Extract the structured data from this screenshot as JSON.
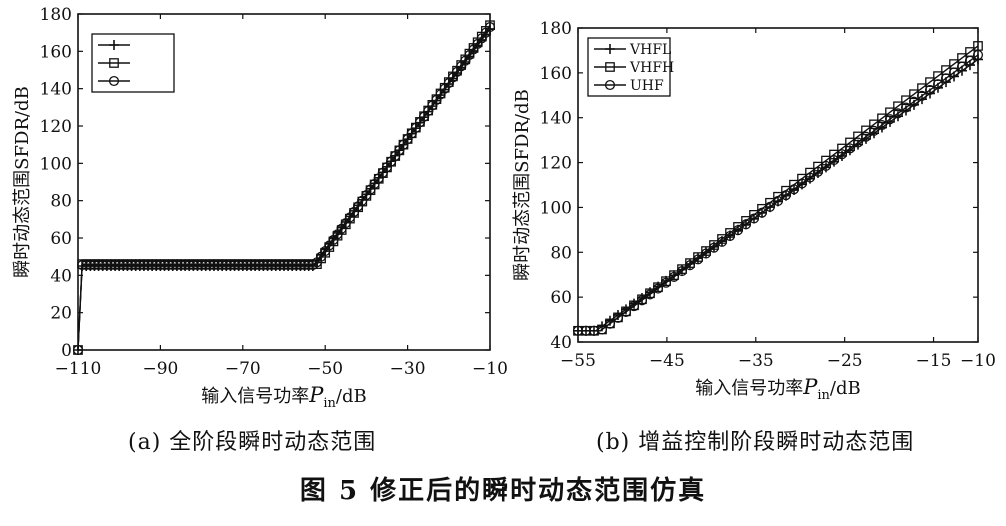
{
  "figure_caption": "图 5  修正后的瞬时动态范围仿真",
  "chart_data": [
    {
      "panel_label": "(a) 全阶段瞬时动态范围",
      "type": "line",
      "ylabel": "瞬时动态范围SFDR/dB",
      "xlabel_main": "输入信号功率",
      "xlabel_symbol": "P",
      "xlabel_sub": "in",
      "xlabel_unit": "/dB",
      "xlim": [
        -110,
        -10
      ],
      "ylim": [
        0,
        180
      ],
      "xticks": [
        -110,
        -90,
        -70,
        -50,
        -30,
        -10
      ],
      "xtick_labels": [
        "−110",
        "−90",
        "−70",
        "−50",
        "−30",
        "−10"
      ],
      "yticks": [
        0,
        20,
        40,
        60,
        80,
        100,
        120,
        140,
        160,
        180
      ],
      "ytick_labels": [
        "0",
        "20",
        "40",
        "60",
        "80",
        "100",
        "120",
        "140",
        "160",
        "180"
      ],
      "grid": false,
      "legend_placement": "top-left",
      "series": [
        {
          "name": "",
          "marker": "plus",
          "x": [
            -110,
            -109,
            -53,
            -10
          ],
          "y": [
            0,
            45,
            45,
            172
          ]
        },
        {
          "name": "",
          "marker": "square",
          "x": [
            -110,
            -109,
            -52,
            -10
          ],
          "y": [
            0,
            46,
            46,
            174
          ]
        },
        {
          "name": "",
          "marker": "circle",
          "x": [
            -110,
            -109,
            -52.5,
            -10
          ],
          "y": [
            0,
            45.5,
            45.5,
            173
          ]
        }
      ]
    },
    {
      "panel_label": "(b) 增益控制阶段瞬时动态范围",
      "type": "line",
      "ylabel": "瞬时动态范围SFDR/dB",
      "xlabel_main": "输入信号功率",
      "xlabel_symbol": "P",
      "xlabel_sub": "in",
      "xlabel_unit": "/dB",
      "xlim": [
        -55,
        -10
      ],
      "ylim": [
        40,
        180
      ],
      "xticks": [
        -55,
        -45,
        -35,
        -25,
        -15,
        -10
      ],
      "xtick_labels": [
        "−55",
        "−45",
        "−35",
        "−25",
        "−15",
        "−10"
      ],
      "yticks": [
        40,
        60,
        80,
        100,
        120,
        140,
        160,
        180
      ],
      "ytick_labels": [
        "40",
        "60",
        "80",
        "100",
        "120",
        "140",
        "160",
        "180"
      ],
      "grid": false,
      "legend_placement": "top-left",
      "series": [
        {
          "name": "VHFL",
          "marker": "plus",
          "x": [
            -55,
            -53,
            -10
          ],
          "y": [
            45,
            45,
            166
          ]
        },
        {
          "name": "VHFH",
          "marker": "square",
          "x": [
            -55,
            -52.5,
            -10
          ],
          "y": [
            45,
            45,
            172
          ]
        },
        {
          "name": "UHF",
          "marker": "circle",
          "x": [
            -55,
            -52.5,
            -10
          ],
          "y": [
            45,
            45,
            168
          ]
        }
      ]
    }
  ]
}
